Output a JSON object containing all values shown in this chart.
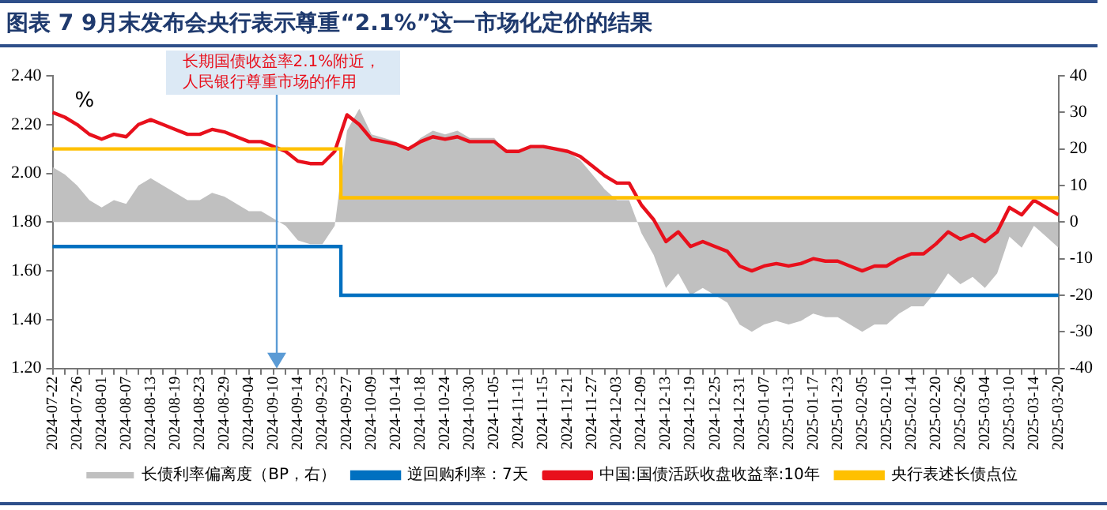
{
  "chart_data": {
    "type": "line",
    "title": "图表 7   9月末发布会央行表示尊重“2.1%”这一市场化定价的结果",
    "ylabel": "%",
    "annotations": [
      "长期国债收益率2.1%附近，人民银行尊重市场的作用"
    ],
    "categories": [
      "2024-07-22",
      null,
      "2024-07-26",
      null,
      "2024-08-01",
      null,
      "2024-08-07",
      null,
      "2024-08-13",
      null,
      "2024-08-19",
      null,
      "2024-08-23",
      null,
      "2024-08-29",
      null,
      "2024-09-04",
      null,
      "2024-09-10",
      null,
      "2024-09-14",
      null,
      "2024-09-23",
      null,
      "2024-09-27",
      null,
      "2024-10-09",
      null,
      "2024-10-14",
      null,
      "2024-10-18",
      null,
      "2024-10-24",
      null,
      "2024-10-30",
      null,
      "2024-11-05",
      null,
      "2024-11-11",
      null,
      "2024-11-15",
      null,
      "2024-11-21",
      null,
      "2024-11-27",
      null,
      "2024-12-03",
      null,
      "2024-12-09",
      null,
      "2024-12-13",
      null,
      "2024-12-19",
      null,
      "2024-12-25",
      null,
      "2024-12-31",
      null,
      "2025-01-07",
      null,
      "2025-01-13",
      null,
      "2025-01-17",
      null,
      "2025-01-23",
      null,
      "2025-02-05",
      null,
      "2025-02-10",
      null,
      "2025-02-14",
      null,
      "2025-02-20",
      null,
      "2025-02-26",
      null,
      "2025-03-04",
      null,
      "2025-03-10",
      null,
      "2025-03-14",
      null,
      "2025-03-20"
    ],
    "series": [
      {
        "name": "长债利率偏离度（BP，右）",
        "type": "area",
        "axis": "y2",
        "color": "#c0c0c0",
        "values": [
          15,
          13,
          10,
          6,
          4,
          6,
          5,
          10,
          12,
          10,
          8,
          6,
          6,
          8,
          7,
          5,
          3,
          3,
          1,
          -1,
          -5,
          -6,
          -6,
          -1,
          25,
          31,
          24,
          23,
          22,
          20,
          23,
          25,
          24,
          25,
          23,
          23,
          23,
          19,
          19,
          21,
          21,
          20,
          19,
          17,
          13,
          9,
          6,
          6,
          -3,
          -9,
          -18,
          -14,
          -20,
          -18,
          -20,
          -22,
          -28,
          -30,
          -28,
          -27,
          -28,
          -27,
          -25,
          -26,
          -26,
          -28,
          -30,
          -28,
          -28,
          -25,
          -23,
          -23,
          -19,
          -14,
          -17,
          -15,
          -18,
          -14,
          -4,
          -7,
          -1,
          -4,
          -7
        ]
      },
      {
        "name": "逆回购利率：7天",
        "type": "step",
        "color": "#0070c0",
        "values": [
          1.7,
          1.7,
          1.7,
          1.7,
          1.7,
          1.7,
          1.7,
          1.7,
          1.7,
          1.7,
          1.7,
          1.7,
          1.7,
          1.7,
          1.7,
          1.7,
          1.7,
          1.7,
          1.7,
          1.7,
          1.7,
          1.7,
          1.7,
          1.7,
          1.5,
          1.5,
          1.5,
          1.5,
          1.5,
          1.5,
          1.5,
          1.5,
          1.5,
          1.5,
          1.5,
          1.5,
          1.5,
          1.5,
          1.5,
          1.5,
          1.5,
          1.5,
          1.5,
          1.5,
          1.5,
          1.5,
          1.5,
          1.5,
          1.5,
          1.5,
          1.5,
          1.5,
          1.5,
          1.5,
          1.5,
          1.5,
          1.5,
          1.5,
          1.5,
          1.5,
          1.5,
          1.5,
          1.5,
          1.5,
          1.5,
          1.5,
          1.5,
          1.5,
          1.5,
          1.5,
          1.5,
          1.5,
          1.5,
          1.5,
          1.5,
          1.5,
          1.5,
          1.5,
          1.5,
          1.5,
          1.5,
          1.5,
          1.5
        ]
      },
      {
        "name": "中国:国债活跃收盘收益率:10年",
        "type": "line",
        "color": "#e8101c",
        "values": [
          2.25,
          2.23,
          2.2,
          2.16,
          2.14,
          2.16,
          2.15,
          2.2,
          2.22,
          2.2,
          2.18,
          2.16,
          2.16,
          2.18,
          2.17,
          2.15,
          2.13,
          2.13,
          2.11,
          2.09,
          2.05,
          2.04,
          2.04,
          2.09,
          2.24,
          2.2,
          2.14,
          2.13,
          2.12,
          2.1,
          2.13,
          2.15,
          2.14,
          2.15,
          2.13,
          2.13,
          2.13,
          2.09,
          2.09,
          2.11,
          2.11,
          2.1,
          2.09,
          2.07,
          2.03,
          1.99,
          1.96,
          1.96,
          1.87,
          1.81,
          1.72,
          1.76,
          1.7,
          1.72,
          1.7,
          1.68,
          1.62,
          1.6,
          1.62,
          1.63,
          1.62,
          1.63,
          1.65,
          1.64,
          1.64,
          1.62,
          1.6,
          1.62,
          1.62,
          1.65,
          1.67,
          1.67,
          1.71,
          1.76,
          1.73,
          1.75,
          1.72,
          1.76,
          1.86,
          1.83,
          1.89,
          1.86,
          1.83
        ]
      },
      {
        "name": "央行表述长债点位",
        "type": "step",
        "color": "#ffc000",
        "values": [
          2.1,
          2.1,
          2.1,
          2.1,
          2.1,
          2.1,
          2.1,
          2.1,
          2.1,
          2.1,
          2.1,
          2.1,
          2.1,
          2.1,
          2.1,
          2.1,
          2.1,
          2.1,
          2.1,
          2.1,
          2.1,
          2.1,
          2.1,
          2.1,
          1.9,
          1.9,
          1.9,
          1.9,
          1.9,
          1.9,
          1.9,
          1.9,
          1.9,
          1.9,
          1.9,
          1.9,
          1.9,
          1.9,
          1.9,
          1.9,
          1.9,
          1.9,
          1.9,
          1.9,
          1.9,
          1.9,
          1.9,
          1.9,
          1.9,
          1.9,
          1.9,
          1.9,
          1.9,
          1.9,
          1.9,
          1.9,
          1.9,
          1.9,
          1.9,
          1.9,
          1.9,
          1.9,
          1.9,
          1.9,
          1.9,
          1.9,
          1.9,
          1.9,
          1.9,
          1.9,
          1.9,
          1.9,
          1.9,
          1.9,
          1.9,
          1.9,
          1.9,
          1.9,
          1.9,
          1.9,
          1.9,
          1.9,
          1.9
        ]
      }
    ],
    "ylim": [
      1.2,
      2.4
    ],
    "yticks": [
      {
        "value": 1.2,
        "label": "1.20"
      },
      {
        "value": 1.4,
        "label": "1.40"
      },
      {
        "value": 1.6,
        "label": "1.60"
      },
      {
        "value": 1.8,
        "label": "1.80"
      },
      {
        "value": 2.0,
        "label": "2.00"
      },
      {
        "value": 2.2,
        "label": "2.20"
      },
      {
        "value": 2.4,
        "label": "2.40"
      }
    ],
    "y2lim": [
      -40,
      40
    ],
    "y2ticks": [
      -40,
      -30,
      -20,
      -10,
      0,
      10,
      20,
      30,
      40
    ],
    "legend": "bottom"
  }
}
